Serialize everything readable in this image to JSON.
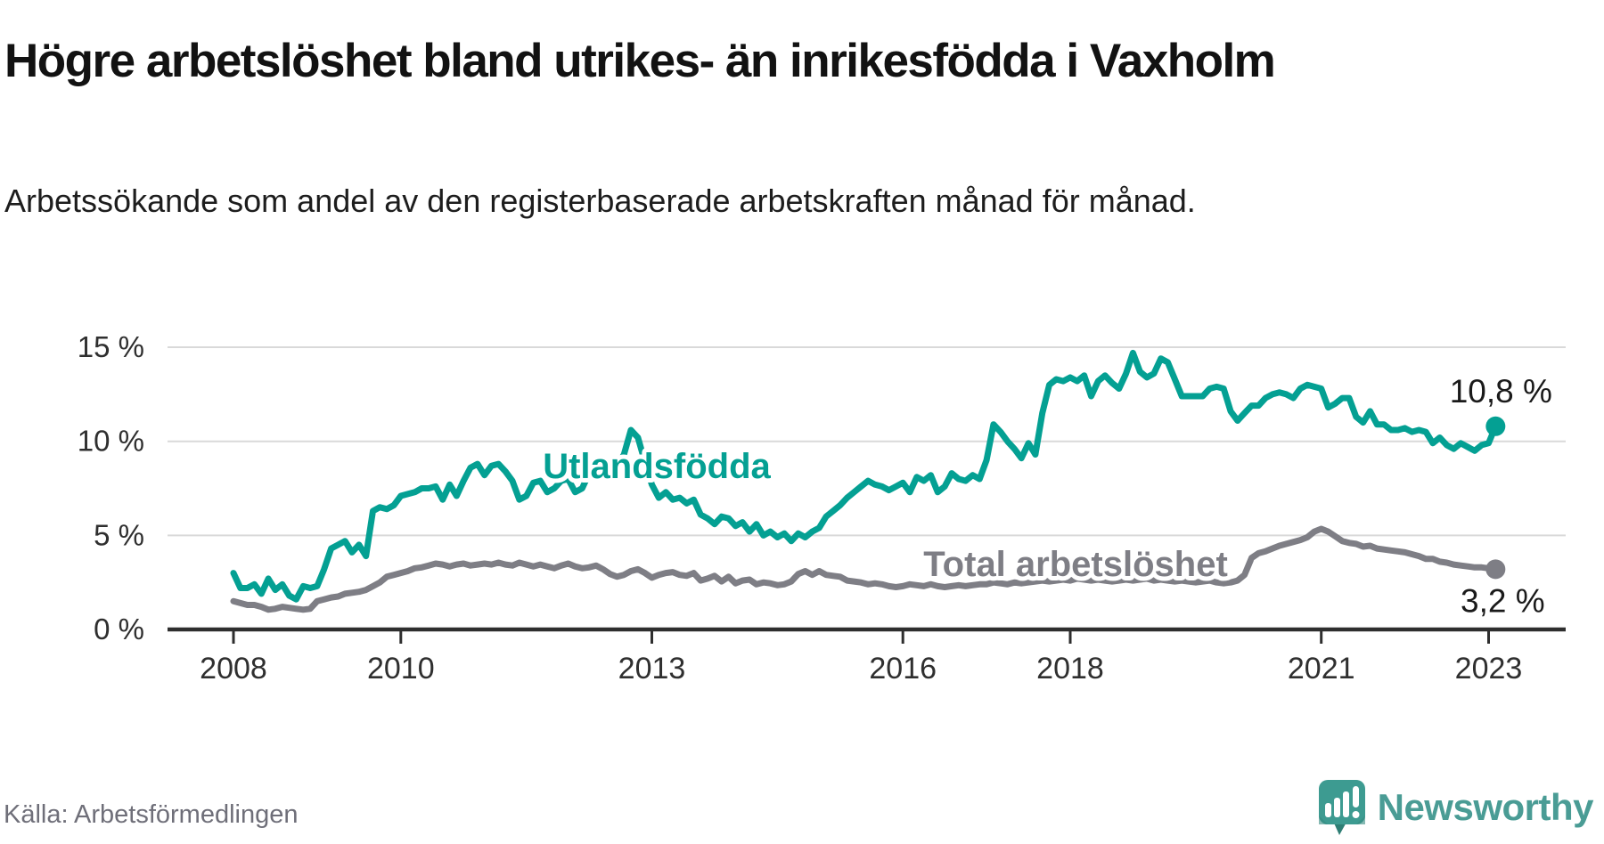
{
  "header": {
    "title": "Högre arbetslöshet bland utrikes- än inrikesfödda i Vaxholm",
    "subtitle": "Arbetssökande som andel av den registerbaserade arbetskraften månad för månad."
  },
  "footer": {
    "source": "Källa: Arbetsförmedlingen",
    "brand": "Newsworthy"
  },
  "colors": {
    "accent_teal": "#04a093",
    "line_gray": "#7e7e85",
    "axis": "#2e2e2e",
    "grid": "#d9d9d9",
    "tick_text": "#2f2f2f",
    "end_label_text": "#1a1a1a",
    "brand_teal": "#4a9c95",
    "source_text": "#6f6f79"
  },
  "chart_data": {
    "type": "line",
    "unit": "%",
    "x_start": "2008-01",
    "x_end": "2023-02",
    "x_frequency": "monthly",
    "x_tick_years": [
      2008,
      2010,
      2013,
      2016,
      2018,
      2021,
      2023
    ],
    "x_tick_labels": [
      "2008",
      "2010",
      "2013",
      "2016",
      "2018",
      "2021",
      "2023"
    ],
    "y_ticks": [
      0,
      5,
      10,
      15
    ],
    "y_tick_labels": [
      "0 %",
      "5 %",
      "10 %",
      "15 %"
    ],
    "ylim": [
      0,
      15.5
    ],
    "grid": "horizontal",
    "legend_position": "inline-labels",
    "series": [
      {
        "name": "Utlandsfödda",
        "color": "#04a093",
        "end_label": "10,8 %",
        "values": [
          3.0,
          2.2,
          2.2,
          2.4,
          1.9,
          2.7,
          2.1,
          2.4,
          1.8,
          1.6,
          2.3,
          2.2,
          2.3,
          3.2,
          4.3,
          4.5,
          4.7,
          4.1,
          4.5,
          3.9,
          6.3,
          6.5,
          6.4,
          6.6,
          7.1,
          7.2,
          7.3,
          7.5,
          7.5,
          7.6,
          6.9,
          7.7,
          7.1,
          7.9,
          8.6,
          8.8,
          8.2,
          8.7,
          8.8,
          8.4,
          7.9,
          6.9,
          7.1,
          7.8,
          7.9,
          7.3,
          7.5,
          7.9,
          8.0,
          7.3,
          7.5,
          8.3,
          8.5,
          8.3,
          8.5,
          8.7,
          9.3,
          10.6,
          10.2,
          8.9,
          7.7,
          7.0,
          7.3,
          6.9,
          7.0,
          6.7,
          6.9,
          6.1,
          5.9,
          5.6,
          6.0,
          5.9,
          5.5,
          5.7,
          5.2,
          5.6,
          5.0,
          5.2,
          4.9,
          5.1,
          4.7,
          5.1,
          4.9,
          5.2,
          5.4,
          6.0,
          6.3,
          6.6,
          7.0,
          7.3,
          7.6,
          7.9,
          7.7,
          7.6,
          7.4,
          7.6,
          7.8,
          7.3,
          8.1,
          7.9,
          8.2,
          7.3,
          7.6,
          8.3,
          8.0,
          7.9,
          8.2,
          8.0,
          9.0,
          10.9,
          10.5,
          10.0,
          9.6,
          9.1,
          9.9,
          9.3,
          11.5,
          13.0,
          13.3,
          13.2,
          13.4,
          13.2,
          13.5,
          12.4,
          13.2,
          13.5,
          13.1,
          12.8,
          13.6,
          14.7,
          13.7,
          13.4,
          13.6,
          14.4,
          14.2,
          13.3,
          12.4,
          12.4,
          12.4,
          12.4,
          12.8,
          12.9,
          12.8,
          11.6,
          11.1,
          11.5,
          11.9,
          11.9,
          12.3,
          12.5,
          12.6,
          12.5,
          12.3,
          12.8,
          13.0,
          12.9,
          12.8,
          11.8,
          12.0,
          12.3,
          12.3,
          11.3,
          11.0,
          11.6,
          10.9,
          10.9,
          10.6,
          10.6,
          10.7,
          10.5,
          10.6,
          10.5,
          9.9,
          10.2,
          9.8,
          9.6,
          9.9,
          9.7,
          9.5,
          9.8,
          9.9,
          10.8
        ]
      },
      {
        "name": "Total arbetslöshet",
        "color": "#7e7e85",
        "end_label": "3,2 %",
        "values": [
          1.5,
          1.4,
          1.3,
          1.3,
          1.2,
          1.05,
          1.1,
          1.2,
          1.15,
          1.1,
          1.05,
          1.1,
          1.5,
          1.6,
          1.7,
          1.75,
          1.9,
          1.95,
          2.0,
          2.1,
          2.3,
          2.5,
          2.8,
          2.9,
          3.0,
          3.1,
          3.25,
          3.3,
          3.4,
          3.5,
          3.45,
          3.35,
          3.45,
          3.5,
          3.4,
          3.45,
          3.5,
          3.45,
          3.55,
          3.45,
          3.4,
          3.55,
          3.45,
          3.35,
          3.45,
          3.35,
          3.25,
          3.4,
          3.5,
          3.35,
          3.25,
          3.3,
          3.4,
          3.2,
          2.95,
          2.8,
          2.9,
          3.1,
          3.2,
          3.0,
          2.75,
          2.9,
          3.0,
          3.05,
          2.9,
          2.85,
          3.0,
          2.6,
          2.7,
          2.85,
          2.55,
          2.8,
          2.45,
          2.6,
          2.65,
          2.4,
          2.5,
          2.45,
          2.35,
          2.4,
          2.55,
          2.95,
          3.1,
          2.9,
          3.1,
          2.9,
          2.85,
          2.8,
          2.6,
          2.55,
          2.5,
          2.4,
          2.45,
          2.4,
          2.3,
          2.25,
          2.3,
          2.4,
          2.35,
          2.3,
          2.4,
          2.3,
          2.25,
          2.3,
          2.35,
          2.3,
          2.35,
          2.4,
          2.4,
          2.5,
          2.45,
          2.4,
          2.5,
          2.45,
          2.5,
          2.55,
          2.6,
          2.55,
          2.6,
          2.65,
          2.6,
          2.7,
          2.65,
          2.6,
          2.65,
          2.6,
          2.55,
          2.6,
          2.65,
          2.6,
          2.65,
          2.7,
          2.6,
          2.65,
          2.6,
          2.55,
          2.6,
          2.55,
          2.5,
          2.55,
          2.6,
          2.5,
          2.45,
          2.5,
          2.6,
          2.9,
          3.8,
          4.05,
          4.15,
          4.3,
          4.45,
          4.55,
          4.65,
          4.75,
          4.9,
          5.2,
          5.35,
          5.2,
          4.95,
          4.7,
          4.6,
          4.55,
          4.4,
          4.45,
          4.3,
          4.25,
          4.2,
          4.15,
          4.1,
          4.0,
          3.9,
          3.75,
          3.75,
          3.6,
          3.55,
          3.45,
          3.4,
          3.35,
          3.3,
          3.3,
          3.25,
          3.2
        ]
      }
    ]
  }
}
